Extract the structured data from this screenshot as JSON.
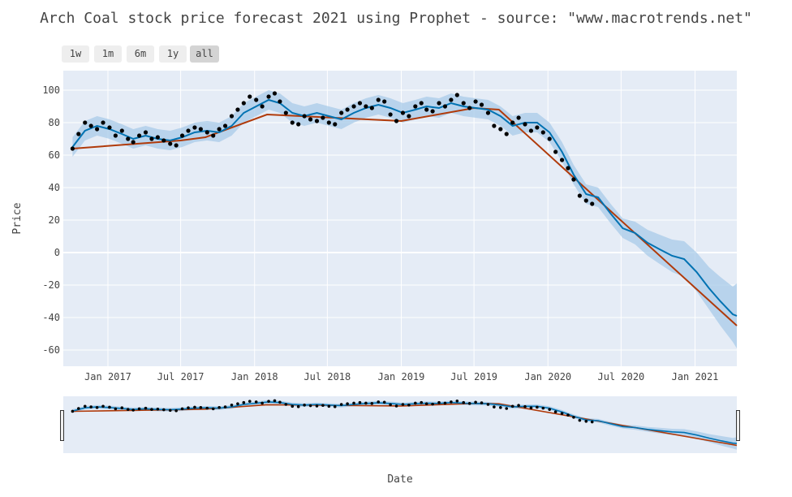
{
  "title": "Arch Coal stock price forecast 2021 using Prophet - source: \"www.macrotrends.net\"",
  "range_buttons": [
    "1w",
    "1m",
    "6m",
    "1y",
    "all"
  ],
  "active_button": "all",
  "colors": {
    "plot_bg": "#e5ecf6",
    "grid": "#ffffff",
    "actual": "#000000",
    "forecast": "#0072b2",
    "band": "#a8cbe8",
    "trend": "#b03a0a",
    "slider_bg": "#e5ecf6"
  },
  "chart_data": {
    "type": "line",
    "title": "Arch Coal stock price forecast 2021 using Prophet - source: \"www.macrotrends.net\"",
    "xlabel": "Date",
    "ylabel": "Price",
    "x_type": "date",
    "xlim": [
      "2016-09-12",
      "2021-04-15"
    ],
    "ylim": [
      -70,
      112
    ],
    "yticks": [
      -60,
      -40,
      -20,
      0,
      20,
      40,
      60,
      80,
      100
    ],
    "xticks": [
      {
        "date": "2017-01-01",
        "label": "Jan 2017"
      },
      {
        "date": "2017-07-01",
        "label": "Jul 2017"
      },
      {
        "date": "2018-01-01",
        "label": "Jan 2018"
      },
      {
        "date": "2018-07-01",
        "label": "Jul 2018"
      },
      {
        "date": "2019-01-01",
        "label": "Jan 2019"
      },
      {
        "date": "2019-07-01",
        "label": "Jul 2019"
      },
      {
        "date": "2020-01-01",
        "label": "Jan 2020"
      },
      {
        "date": "2020-07-01",
        "label": "Jul 2020"
      },
      {
        "date": "2021-01-01",
        "label": "Jan 2021"
      }
    ],
    "grid": true,
    "legend": "none",
    "series": [
      {
        "type": "scatter",
        "x": [
          "2016-10-05",
          "2016-10-20",
          "2016-11-05",
          "2016-11-20",
          "2016-12-05",
          "2016-12-20",
          "2017-01-05",
          "2017-01-20",
          "2017-02-05",
          "2017-02-20",
          "2017-03-05",
          "2017-03-20",
          "2017-04-05",
          "2017-04-20",
          "2017-05-05",
          "2017-05-20",
          "2017-06-05",
          "2017-06-20",
          "2017-07-05",
          "2017-07-20",
          "2017-08-05",
          "2017-08-20",
          "2017-09-05",
          "2017-09-20",
          "2017-10-05",
          "2017-10-20",
          "2017-11-05",
          "2017-11-20",
          "2017-12-05",
          "2017-12-20",
          "2018-01-05",
          "2018-01-20",
          "2018-02-05",
          "2018-02-20",
          "2018-03-05",
          "2018-03-20",
          "2018-04-05",
          "2018-04-20",
          "2018-05-05",
          "2018-05-20",
          "2018-06-05",
          "2018-06-20",
          "2018-07-05",
          "2018-07-20",
          "2018-08-05",
          "2018-08-20",
          "2018-09-05",
          "2018-09-20",
          "2018-10-05",
          "2018-10-20",
          "2018-11-05",
          "2018-11-20",
          "2018-12-05",
          "2018-12-20",
          "2019-01-05",
          "2019-01-20",
          "2019-02-05",
          "2019-02-20",
          "2019-03-05",
          "2019-03-20",
          "2019-04-05",
          "2019-04-20",
          "2019-05-05",
          "2019-05-20",
          "2019-06-05",
          "2019-06-20",
          "2019-07-05",
          "2019-07-20",
          "2019-08-05",
          "2019-08-20",
          "2019-09-05",
          "2019-09-20",
          "2019-10-05",
          "2019-10-20",
          "2019-11-05",
          "2019-11-20",
          "2019-12-05",
          "2019-12-20",
          "2020-01-05",
          "2020-01-20",
          "2020-02-05",
          "2020-02-20",
          "2020-03-05",
          "2020-03-20",
          "2020-04-05",
          "2020-04-20"
        ],
        "y": [
          64,
          73,
          80,
          78,
          76,
          80,
          77,
          72,
          75,
          70,
          68,
          72,
          74,
          70,
          71,
          69,
          67,
          66,
          72,
          75,
          77,
          76,
          74,
          72,
          76,
          78,
          84,
          88,
          92,
          96,
          94,
          90,
          96,
          98,
          93,
          86,
          80,
          79,
          84,
          82,
          81,
          83,
          80,
          79,
          86,
          88,
          90,
          92,
          90,
          89,
          94,
          93,
          85,
          81,
          86,
          84,
          90,
          92,
          88,
          87,
          92,
          90,
          94,
          97,
          92,
          89,
          93,
          91,
          86,
          78,
          76,
          73,
          80,
          83,
          79,
          75,
          77,
          74,
          70,
          62,
          57,
          52,
          45,
          35,
          32,
          30
        ]
      },
      {
        "type": "line",
        "name": "yhat",
        "x": [
          "2016-10-05",
          "2016-11-05",
          "2016-12-05",
          "2017-01-05",
          "2017-02-05",
          "2017-03-05",
          "2017-04-05",
          "2017-05-05",
          "2017-06-05",
          "2017-07-05",
          "2017-08-05",
          "2017-09-05",
          "2017-10-05",
          "2017-11-05",
          "2017-12-05",
          "2018-01-05",
          "2018-02-05",
          "2018-03-05",
          "2018-04-05",
          "2018-05-05",
          "2018-06-05",
          "2018-07-05",
          "2018-08-05",
          "2018-09-05",
          "2018-10-05",
          "2018-11-05",
          "2018-12-05",
          "2019-01-05",
          "2019-02-05",
          "2019-03-05",
          "2019-04-05",
          "2019-05-05",
          "2019-06-05",
          "2019-07-05",
          "2019-08-05",
          "2019-09-05",
          "2019-10-05",
          "2019-11-05",
          "2019-12-05",
          "2020-01-05",
          "2020-02-05",
          "2020-03-05",
          "2020-04-05",
          "2020-05-05",
          "2020-06-05",
          "2020-07-05",
          "2020-08-05",
          "2020-09-05",
          "2020-10-05",
          "2020-11-05",
          "2020-12-05",
          "2021-01-05",
          "2021-02-05",
          "2021-03-05",
          "2021-04-05",
          "2021-04-15"
        ],
        "y": [
          65,
          75,
          78,
          76,
          73,
          70,
          72,
          70,
          69,
          71,
          74,
          75,
          74,
          78,
          86,
          90,
          94,
          92,
          86,
          84,
          86,
          84,
          82,
          86,
          89,
          91,
          89,
          86,
          88,
          90,
          89,
          92,
          90,
          89,
          88,
          84,
          78,
          80,
          80,
          74,
          62,
          48,
          36,
          34,
          24,
          15,
          12,
          6,
          2,
          -2,
          -4,
          -12,
          -22,
          -30,
          -38,
          -39
        ]
      },
      {
        "type": "band",
        "name": "yhat_lower / yhat_upper",
        "x": [
          "2016-10-05",
          "2016-11-05",
          "2016-12-05",
          "2017-01-05",
          "2017-02-05",
          "2017-03-05",
          "2017-04-05",
          "2017-05-05",
          "2017-06-05",
          "2017-07-05",
          "2017-08-05",
          "2017-09-05",
          "2017-10-05",
          "2017-11-05",
          "2017-12-05",
          "2018-01-05",
          "2018-02-05",
          "2018-03-05",
          "2018-04-05",
          "2018-05-05",
          "2018-06-05",
          "2018-07-05",
          "2018-08-05",
          "2018-09-05",
          "2018-10-05",
          "2018-11-05",
          "2018-12-05",
          "2019-01-05",
          "2019-02-05",
          "2019-03-05",
          "2019-04-05",
          "2019-05-05",
          "2019-06-05",
          "2019-07-05",
          "2019-08-05",
          "2019-09-05",
          "2019-10-05",
          "2019-11-05",
          "2019-12-05",
          "2020-01-05",
          "2020-02-05",
          "2020-03-05",
          "2020-04-05",
          "2020-05-05",
          "2020-06-05",
          "2020-07-05",
          "2020-08-05",
          "2020-09-05",
          "2020-10-05",
          "2020-11-05",
          "2020-12-05",
          "2021-01-05",
          "2021-02-05",
          "2021-03-05",
          "2021-04-05",
          "2021-04-15"
        ],
        "lower": [
          59,
          69,
          72,
          70,
          67,
          64,
          66,
          64,
          63,
          65,
          68,
          69,
          68,
          72,
          80,
          84,
          88,
          86,
          80,
          78,
          80,
          78,
          76,
          80,
          83,
          85,
          83,
          80,
          82,
          84,
          83,
          86,
          84,
          83,
          82,
          78,
          72,
          74,
          74,
          68,
          56,
          42,
          30,
          28,
          18,
          9,
          5,
          -2,
          -7,
          -12,
          -15,
          -24,
          -35,
          -45,
          -55,
          -59
        ],
        "upper": [
          71,
          81,
          84,
          82,
          79,
          76,
          78,
          76,
          75,
          77,
          80,
          81,
          80,
          84,
          92,
          96,
          100,
          98,
          92,
          90,
          92,
          90,
          88,
          92,
          95,
          97,
          95,
          92,
          94,
          96,
          95,
          98,
          96,
          95,
          94,
          90,
          84,
          86,
          86,
          80,
          68,
          54,
          42,
          40,
          30,
          21,
          19,
          14,
          11,
          8,
          7,
          0,
          -9,
          -15,
          -21,
          -19
        ]
      },
      {
        "type": "line",
        "name": "trend",
        "x": [
          "2016-10-05",
          "2017-07-01",
          "2017-09-01",
          "2018-02-01",
          "2019-01-01",
          "2019-07-01",
          "2019-09-01",
          "2021-04-15"
        ],
        "y": [
          64,
          69,
          71,
          85,
          81,
          89,
          88,
          -45
        ]
      }
    ]
  }
}
